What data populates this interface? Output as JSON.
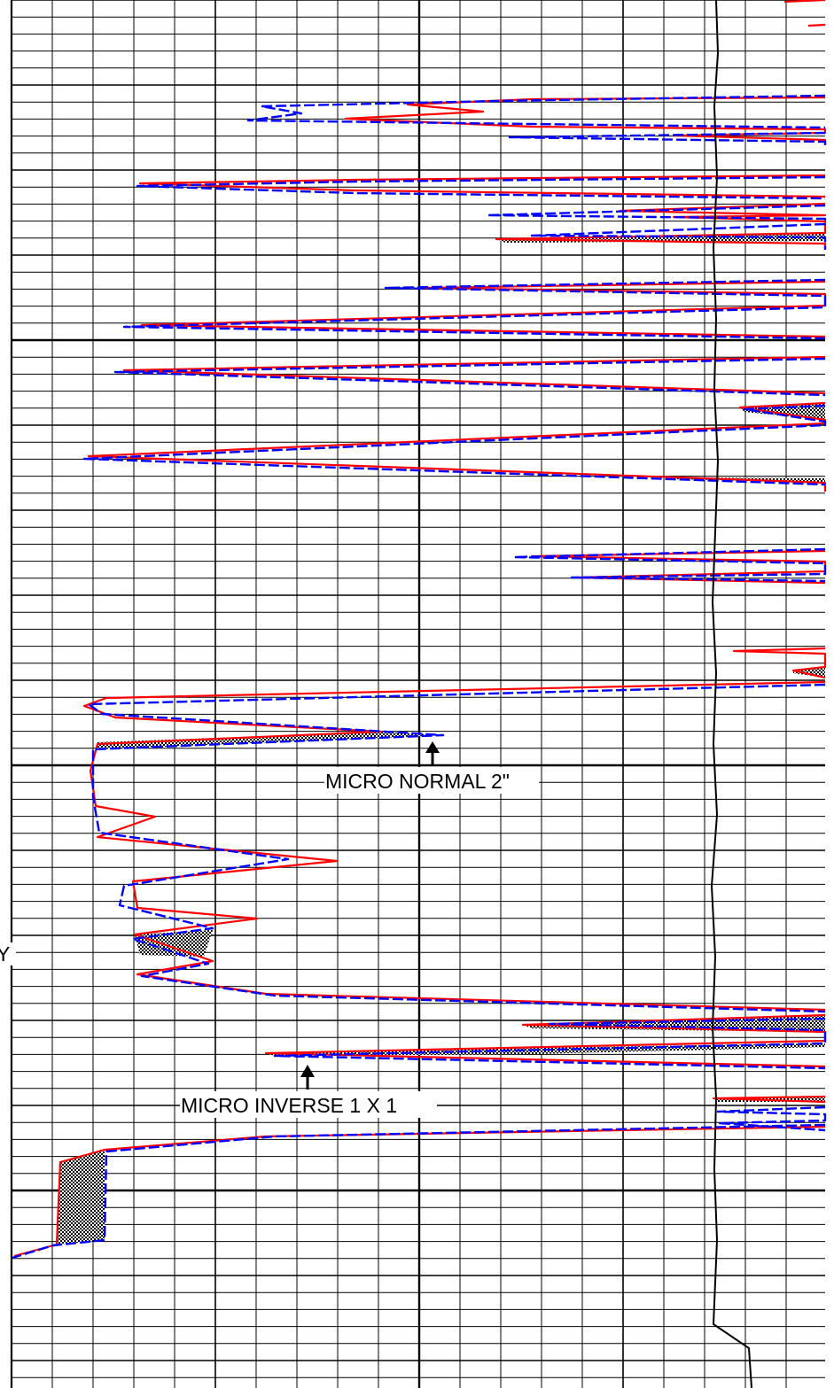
{
  "chart_data": {
    "type": "line",
    "title": "",
    "xlabel": "",
    "ylabel": "",
    "grid": true,
    "series": [
      {
        "name": "MICRO NORMAL 2\"",
        "color": "#0000ff",
        "style": "dashed"
      },
      {
        "name": "MICRO INVERSE 1 X 1",
        "color": "#ff0000",
        "style": "solid"
      }
    ],
    "annotations": [
      {
        "text": "MICRO NORMAL 2\"",
        "series": "MICRO NORMAL 2\""
      },
      {
        "text": "MICRO INVERSE 1 X 1",
        "series": "MICRO INVERSE 1 X 1"
      }
    ],
    "edge_text": "Y"
  },
  "colors": {
    "grid": "#000000",
    "micro_normal": "#0000ff",
    "micro_inverse": "#ff0000",
    "separation_fill": "#000000"
  }
}
